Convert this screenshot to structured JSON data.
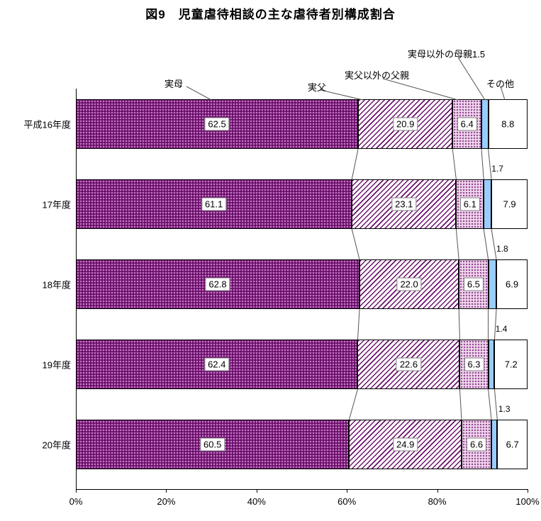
{
  "title": "図9　児童虐待相談の主な虐待者別構成割合",
  "chart_data": {
    "type": "bar",
    "orientation": "horizontal",
    "stacked": true,
    "unit": "%",
    "title": "図9　児童虐待相談の主な虐待者別構成割合",
    "categories": [
      "平成16年度",
      "17年度",
      "18年度",
      "19年度",
      "20年度"
    ],
    "series": [
      {
        "name": "実母",
        "values": [
          62.5,
          61.1,
          62.8,
          62.4,
          60.5
        ]
      },
      {
        "name": "実父",
        "values": [
          20.9,
          23.1,
          22.0,
          22.6,
          24.9
        ]
      },
      {
        "name": "実父以外の父親",
        "values": [
          6.4,
          6.1,
          6.5,
          6.3,
          6.6
        ]
      },
      {
        "name": "実母以外の母親",
        "values": [
          1.5,
          1.7,
          1.8,
          1.4,
          1.3
        ]
      },
      {
        "name": "その他",
        "values": [
          8.8,
          7.9,
          6.9,
          7.2,
          6.7
        ]
      }
    ],
    "series_header_labels": [
      "実母",
      "実父",
      "実父以外の父親",
      "実母以外の母親1.5",
      "その他"
    ],
    "x_ticks": [
      "0%",
      "20%",
      "40%",
      "60%",
      "80%",
      "100%"
    ],
    "xlim": [
      0,
      100
    ],
    "grid": false,
    "legend_position": "top-annotations",
    "colors": {
      "mother_fill": "#670B67",
      "mother_dot": "#C77BC7",
      "father_fill": "#FFFFFF",
      "father_hatch": "#6B116B",
      "other_father_fill": "#F2D8EE",
      "other_father_dot": "#8E4390",
      "other_mother_fill": "#99CCFF",
      "other_fill": "#FFFFFF",
      "segment_border": "#000000",
      "connector_line": "#555555"
    }
  }
}
